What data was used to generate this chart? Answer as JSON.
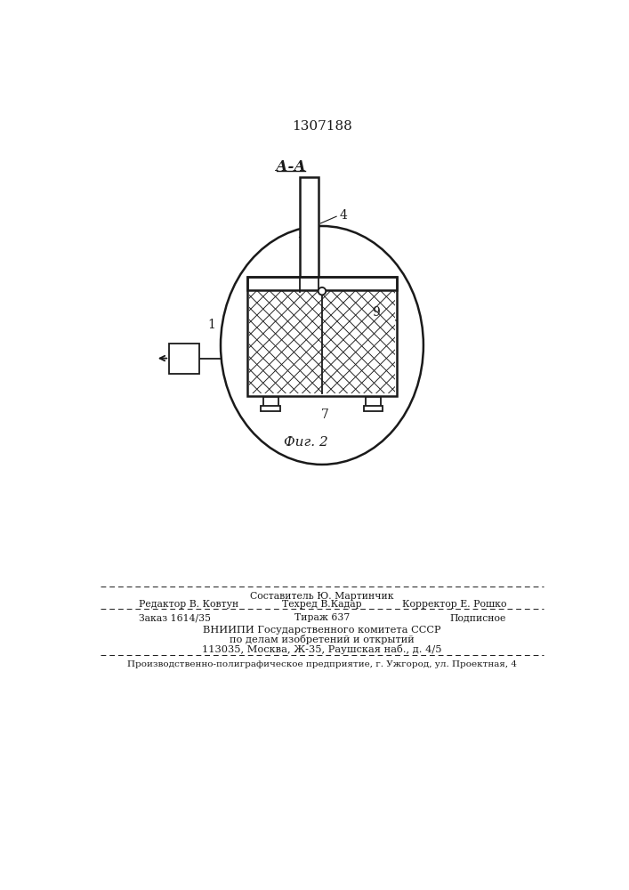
{
  "patent_number": "1307188",
  "section_label": "А-А",
  "fig_label": "Фиг. 2",
  "bg_color": "#ffffff",
  "line_color": "#1a1a1a",
  "footer_col2_y0": "Составитель Ю. Мартинчик",
  "footer_col1_y1": "Редактор В. Ковтун",
  "footer_col2_y1": "Техред В.Кадар",
  "footer_col3_y1": "Корректор Е. Рошко",
  "footer_col1_y2": "Заказ 1614/35",
  "footer_col2_y2": "Тираж 637",
  "footer_col3_y2": "Подписное",
  "footer_vniip1": "ВНИИПИ Государственного комитета СССР",
  "footer_vniip2": "по делам изобретений и открытий",
  "footer_vniip3": "113035, Москва, Ж-35, Раушская наб., д. 4/5",
  "footer_prod": "Производственно-полиграфическое предприятие, г. Ужгород, ул. Проектная, 4"
}
